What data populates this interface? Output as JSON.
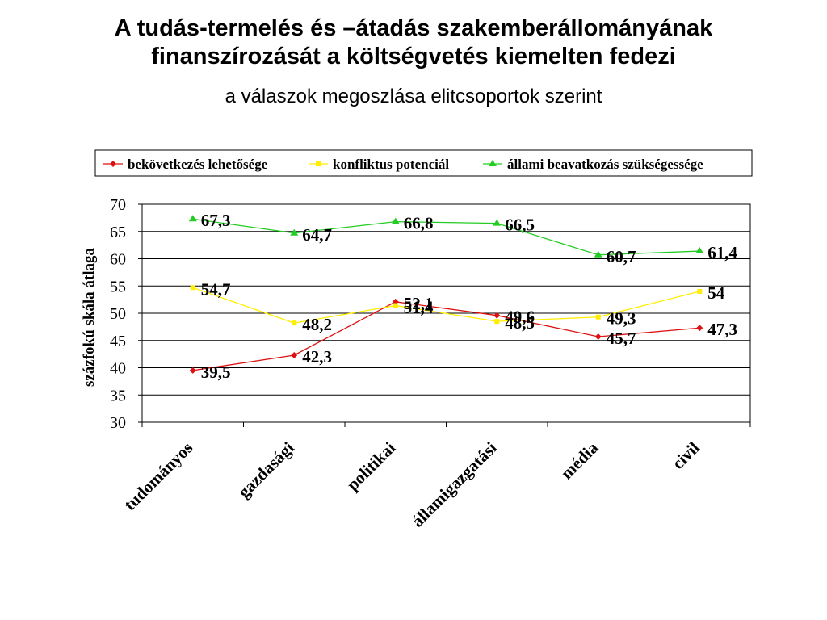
{
  "slide": {
    "title_line1": "A tudás-termelés és –átadás szakemberállományának",
    "title_line2": "finanszírozását a költségvetés kiemelten fedezi",
    "subtitle": "a válaszok megoszlása elitcsoportok szerint"
  },
  "chart_data": {
    "type": "line",
    "title": "",
    "ylabel": "százfokú skála átlaga",
    "xlabel": "",
    "ylim": [
      30,
      70
    ],
    "yticks": [
      "30",
      "35",
      "40",
      "45",
      "50",
      "55",
      "60",
      "65",
      "70"
    ],
    "categories": [
      "tudományos",
      "gazdasági",
      "politikai",
      "államigazgatási",
      "média",
      "civil"
    ],
    "legend_position": "top",
    "grid": true,
    "series": [
      {
        "name": "bekövetkezés lehetősége",
        "color": "#dd1111",
        "marker": "diamond",
        "values": [
          39.5,
          42.3,
          52.1,
          49.6,
          45.7,
          47.3
        ],
        "labels": [
          "39,5",
          "42,3",
          "52,1",
          "49,6",
          "45,7",
          "47,3"
        ]
      },
      {
        "name": "konfliktus potenciál",
        "color": "#ffee00",
        "marker": "square",
        "values": [
          54.7,
          48.2,
          51.4,
          48.5,
          49.3,
          54
        ],
        "labels": [
          "54,7",
          "48,2",
          "51,4",
          "48,5",
          "49,3",
          "54"
        ]
      },
      {
        "name": "állami beavatkozás szükségessége",
        "color": "#22cc22",
        "marker": "triangle",
        "values": [
          67.3,
          64.7,
          66.8,
          66.5,
          60.7,
          61.4
        ],
        "labels": [
          "67,3",
          "64,7",
          "66,8",
          "66,5",
          "60,7",
          "61,4"
        ]
      }
    ]
  }
}
